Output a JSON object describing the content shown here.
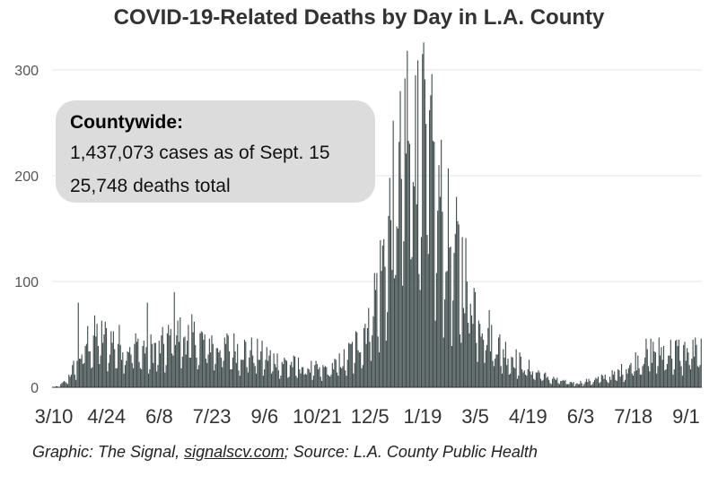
{
  "title": "COVID-19-Related Deaths by Day in L.A. County",
  "callout": {
    "heading": "Countywide:",
    "line1": "1,437,073 cases as of Sept. 15",
    "line2": "25,748 deaths total"
  },
  "footer": {
    "prefix": "Graphic: The Signal, ",
    "link": "signalscv.com",
    "suffix": "; Source: L.A. County Public Health"
  },
  "colors": {
    "bar": "#3e4a4a",
    "grid": "#e6e6e6",
    "callout_bg": "#dcdcdc"
  },
  "chart_data": {
    "type": "bar",
    "title": "COVID-19-Related Deaths by Day in L.A. County",
    "xlabel": "",
    "ylabel": "",
    "ylim": [
      0,
      320
    ],
    "yticks": [
      0,
      100,
      200,
      300
    ],
    "grid": true,
    "xtick_labels": [
      "3/10",
      "4/24",
      "6/8",
      "7/23",
      "9/6",
      "10/21",
      "12/5",
      "1/19",
      "3/5",
      "4/19",
      "6/3",
      "7/18",
      "9/1"
    ],
    "start_date": "2020-03-10",
    "keyframes": [
      [
        0,
        0
      ],
      [
        6,
        1
      ],
      [
        12,
        8
      ],
      [
        20,
        25
      ],
      [
        30,
        50
      ],
      [
        40,
        55
      ],
      [
        50,
        50
      ],
      [
        60,
        45
      ],
      [
        75,
        42
      ],
      [
        90,
        40
      ],
      [
        105,
        55
      ],
      [
        115,
        55
      ],
      [
        125,
        50
      ],
      [
        140,
        45
      ],
      [
        155,
        42
      ],
      [
        170,
        38
      ],
      [
        185,
        32
      ],
      [
        200,
        25
      ],
      [
        215,
        22
      ],
      [
        230,
        18
      ],
      [
        240,
        22
      ],
      [
        250,
        30
      ],
      [
        262,
        50
      ],
      [
        272,
        80
      ],
      [
        282,
        130
      ],
      [
        290,
        190
      ],
      [
        300,
        240
      ],
      [
        312,
        260
      ],
      [
        320,
        250
      ],
      [
        330,
        200
      ],
      [
        340,
        150
      ],
      [
        350,
        130
      ],
      [
        360,
        95
      ],
      [
        370,
        65
      ],
      [
        380,
        45
      ],
      [
        390,
        35
      ],
      [
        400,
        25
      ],
      [
        410,
        18
      ],
      [
        420,
        12
      ],
      [
        430,
        8
      ],
      [
        440,
        5
      ],
      [
        450,
        5
      ],
      [
        460,
        7
      ],
      [
        470,
        10
      ],
      [
        480,
        13
      ],
      [
        490,
        20
      ],
      [
        500,
        30
      ],
      [
        510,
        38
      ],
      [
        517,
        38
      ],
      [
        550,
        38
      ]
    ],
    "peaks": [
      [
        303,
        318
      ],
      [
        316,
        315
      ],
      [
        310,
        295
      ],
      [
        301,
        292
      ],
      [
        104,
        90
      ],
      [
        81,
        80
      ],
      [
        22,
        80
      ]
    ]
  }
}
